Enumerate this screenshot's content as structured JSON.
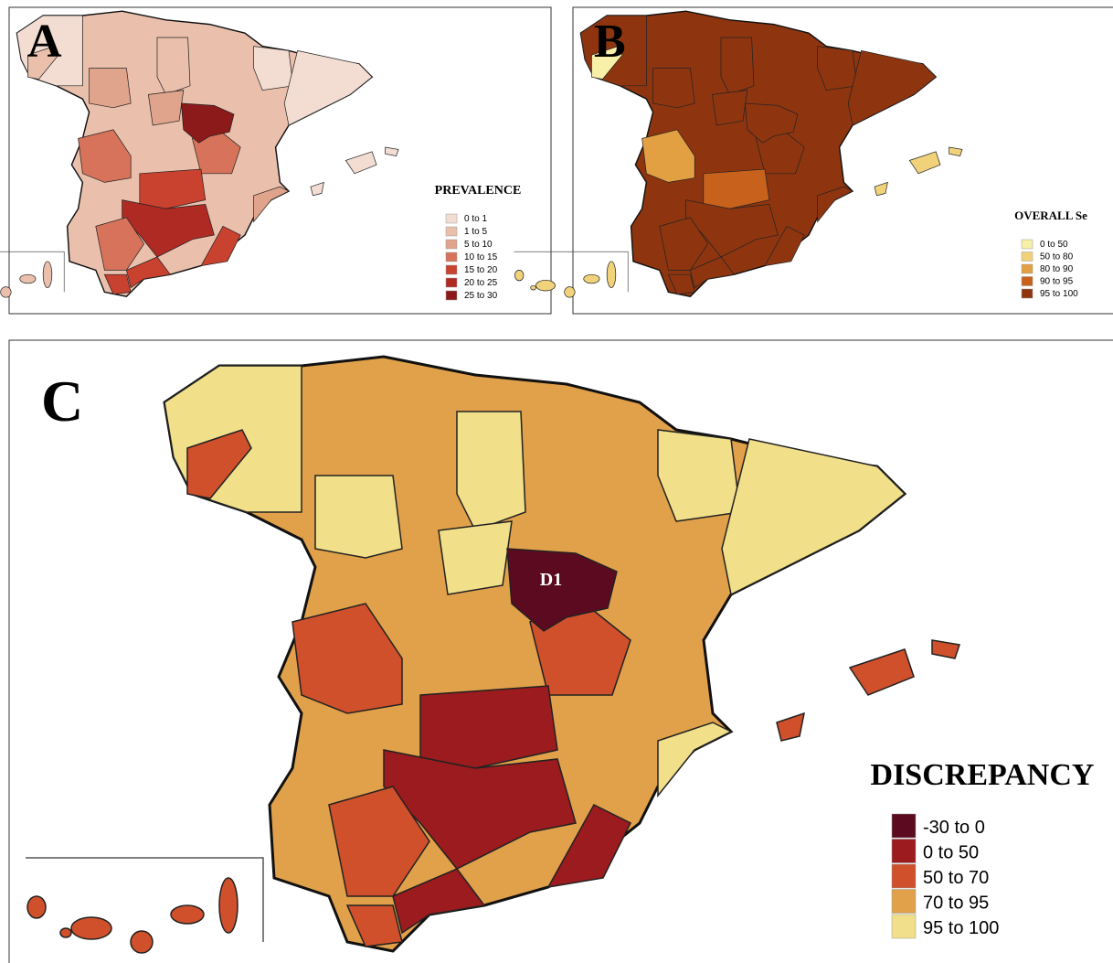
{
  "panels": [
    {
      "label": "A",
      "legend": {
        "title": "PREVALENCE",
        "items": [
          {
            "label": "0 to 1",
            "color": "#f3ddd2"
          },
          {
            "label": "1 to 5",
            "color": "#eac0ad"
          },
          {
            "label": "5 to 10",
            "color": "#e0a38b"
          },
          {
            "label": "10 to 15",
            "color": "#d6735a"
          },
          {
            "label": "15 to 20",
            "color": "#c9412f"
          },
          {
            "label": "20 to 25",
            "color": "#b02a24"
          },
          {
            "label": "25 to 30",
            "color": "#8c1a1a"
          }
        ]
      }
    },
    {
      "label": "B",
      "legend": {
        "title": "OVERALL Se",
        "items": [
          {
            "label": "0 to 50",
            "color": "#f8f0a8"
          },
          {
            "label": "50 to 80",
            "color": "#f1d27a"
          },
          {
            "label": "80 to 90",
            "color": "#e3a043"
          },
          {
            "label": "90 to 95",
            "color": "#c8611c"
          },
          {
            "label": "95 to 100",
            "color": "#8e3510"
          }
        ]
      }
    },
    {
      "label": "C",
      "annotation": "D1",
      "legend": {
        "title": "DISCREPANCY",
        "items": [
          {
            "label": "-30 to 0",
            "color": "#5c0a1f"
          },
          {
            "label": "0 to 50",
            "color": "#9b1b1e"
          },
          {
            "label": "50 to 70",
            "color": "#d0502b"
          },
          {
            "label": "70 to 95",
            "color": "#e1a04a"
          },
          {
            "label": "95 to 100",
            "color": "#f1df8a"
          }
        ]
      }
    }
  ]
}
